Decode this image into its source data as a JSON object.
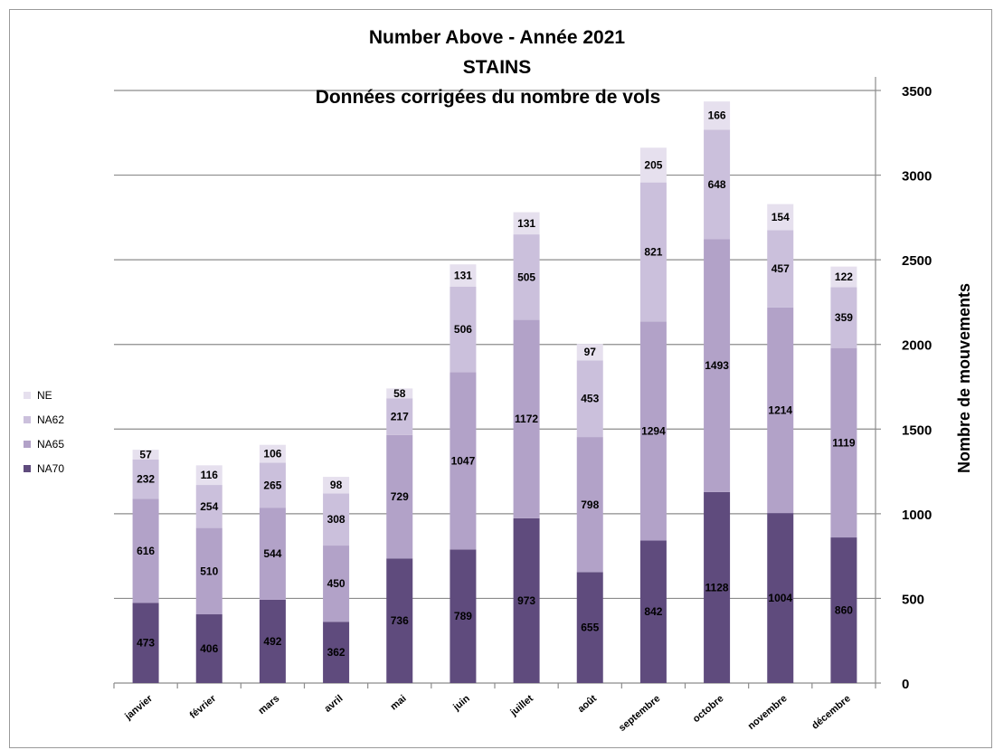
{
  "chart_data": {
    "type": "bar",
    "stacked": true,
    "title": "Number Above - Année 2021",
    "subtitle": "STAINS",
    "subtitle2": "Données corrigées du nombre de vols",
    "xlabel": "",
    "ylabel": "Nombre de mouvements",
    "ylim": [
      0,
      3500
    ],
    "yticks": [
      "0",
      "500",
      "1000",
      "1500",
      "2000",
      "2500",
      "3000",
      "3500"
    ],
    "grid": true,
    "legend_position": "left",
    "categories": [
      "janvier",
      "février",
      "mars",
      "avril",
      "mai",
      "juin",
      "juillet",
      "août",
      "septembre",
      "octobre",
      "novembre",
      "décembre"
    ],
    "series": [
      {
        "name": "NA70",
        "color": "#5f4b7d",
        "values": [
          473,
          406,
          492,
          362,
          736,
          789,
          973,
          655,
          842,
          1128,
          1004,
          860
        ]
      },
      {
        "name": "NA65",
        "color": "#b2a2c8",
        "values": [
          616,
          510,
          544,
          450,
          729,
          1047,
          1172,
          798,
          1294,
          1493,
          1214,
          1119
        ]
      },
      {
        "name": "NA62",
        "color": "#cbc0dc",
        "values": [
          232,
          254,
          265,
          308,
          217,
          506,
          505,
          453,
          821,
          648,
          457,
          359
        ]
      },
      {
        "name": "NE",
        "color": "#e6e0ee",
        "values": [
          57,
          116,
          106,
          98,
          58,
          131,
          131,
          97,
          205,
          166,
          154,
          122
        ]
      }
    ],
    "legend_order": [
      "NE",
      "NA62",
      "NA65",
      "NA70"
    ]
  }
}
